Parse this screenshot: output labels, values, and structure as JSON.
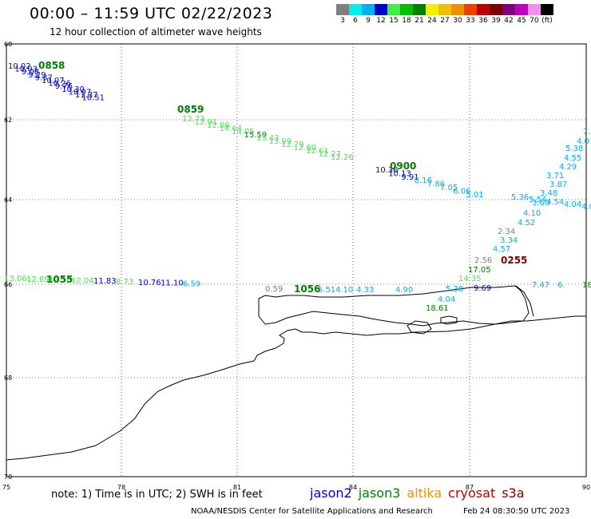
{
  "header": {
    "title": "00:00 – 11:59 UTC 02/22/2023",
    "subtitle": "12 hour collection of altimeter wave heights"
  },
  "legend": {
    "colors": [
      "#7f7f7f",
      "#00f0f0",
      "#00b0f0",
      "#0000d0",
      "#40f040",
      "#00c000",
      "#008000",
      "#f0f000",
      "#f0c000",
      "#f09000",
      "#f04000",
      "#c00000",
      "#800000",
      "#800080",
      "#c000c0",
      "#f090f0",
      "#000000"
    ],
    "labels": [
      "3",
      "6",
      "9",
      "12",
      "15",
      "18",
      "21",
      "24",
      "27",
      "30",
      "33",
      "36",
      "39",
      "42",
      "45",
      "70",
      "(ft)"
    ]
  },
  "axes": {
    "lat_labels": [
      "60",
      "62",
      "64",
      "66",
      "68",
      "70"
    ],
    "lon_labels": [
      "75",
      "78",
      "81",
      "84",
      "87",
      "90"
    ]
  },
  "tracks": [
    {
      "time": "0858",
      "time_color": "#008000",
      "points": [
        {
          "v": "10.02",
          "c": "#0000d0"
        },
        {
          "v": "10.03",
          "c": "#0000d0"
        },
        {
          "v": "9.08",
          "c": "#0000d0"
        },
        {
          "v": "9.29",
          "c": "#0000d0"
        },
        {
          "v": "9.37",
          "c": "#0000d0"
        },
        {
          "v": "10.07",
          "c": "#0000d0"
        },
        {
          "v": "10.26",
          "c": "#0000d0"
        },
        {
          "v": "9.76",
          "c": "#0000d0"
        },
        {
          "v": "10.30",
          "c": "#0000d0"
        },
        {
          "v": "10.97",
          "c": "#0000d0"
        },
        {
          "v": "11.37",
          "c": "#0000d0"
        },
        {
          "v": "10.51",
          "c": "#0000d0"
        }
      ]
    },
    {
      "time": "0859",
      "time_color": "#008000",
      "points": [
        {
          "v": "12.73",
          "c": "#40f040"
        },
        {
          "v": "12.91",
          "c": "#40f040"
        },
        {
          "v": "12.86",
          "c": "#40f040"
        },
        {
          "v": "14.64",
          "c": "#40f040"
        },
        {
          "v": "14.05",
          "c": "#40f040"
        },
        {
          "v": "15.59",
          "c": "#008000"
        },
        {
          "v": "13.43",
          "c": "#40f040"
        },
        {
          "v": "13.99",
          "c": "#40f040"
        },
        {
          "v": "12.79",
          "c": "#40f040"
        },
        {
          "v": "12.80",
          "c": "#40f040"
        },
        {
          "v": "12.61",
          "c": "#40f040"
        },
        {
          "v": "12.27",
          "c": "#40f040"
        },
        {
          "v": "12.26",
          "c": "#40f040"
        }
      ]
    },
    {
      "time": "0900",
      "time_color": "#008000",
      "points": [
        {
          "v": "10.36",
          "c": "#0000d0"
        },
        {
          "v": "10.13",
          "c": "#0000d0"
        },
        {
          "v": "9.91",
          "c": "#0000d0"
        },
        {
          "v": "8.16",
          "c": "#00b0f0"
        },
        {
          "v": "7.86",
          "c": "#00b0f0"
        },
        {
          "v": "7.05",
          "c": "#00b0f0"
        },
        {
          "v": "6.06",
          "c": "#00b0f0"
        },
        {
          "v": "5.01",
          "c": "#00b0f0"
        }
      ]
    },
    {
      "time": "",
      "time_color": "#008000",
      "points": [
        {
          "v": "5.36",
          "c": "#00b0f0"
        },
        {
          "v": "5.54",
          "c": "#00b0f0"
        },
        {
          "v": "4.54",
          "c": "#00b0f0"
        },
        {
          "v": "4.04",
          "c": "#00b0f0"
        },
        {
          "v": "4.02",
          "c": "#00b0f0"
        }
      ]
    },
    {
      "time": "0255",
      "time_color": "#800000",
      "points": [
        {
          "v": "7.",
          "c": "#00b0f0"
        },
        {
          "v": "4.0",
          "c": "#00b0f0"
        },
        {
          "v": "5.38",
          "c": "#00b0f0"
        },
        {
          "v": "4.55",
          "c": "#00b0f0"
        },
        {
          "v": "4.29",
          "c": "#00b0f0"
        },
        {
          "v": "3.71",
          "c": "#00b0f0"
        },
        {
          "v": "3.87",
          "c": "#00b0f0"
        },
        {
          "v": "3.48",
          "c": "#00b0f0"
        },
        {
          "v": "3.60",
          "c": "#00b0f0"
        },
        {
          "v": "4.10",
          "c": "#00b0f0"
        },
        {
          "v": "4.52",
          "c": "#00b0f0"
        },
        {
          "v": "2.34",
          "c": "#7f7f7f"
        },
        {
          "v": "3.34",
          "c": "#00b0f0"
        },
        {
          "v": "4.57",
          "c": "#00b0f0"
        },
        {
          "v": "2.56",
          "c": "#7f7f7f"
        },
        {
          "v": "17.05",
          "c": "#008000"
        },
        {
          "v": "14.35",
          "c": "#40f040"
        },
        {
          "v": "5.38",
          "c": "#00b0f0"
        },
        {
          "v": "4.04",
          "c": "#00b0f0"
        },
        {
          "v": "18.61",
          "c": "#008000"
        },
        {
          "v": "9.69",
          "c": "#0000d0"
        }
      ]
    },
    {
      "time": "1055",
      "time_color": "#008000",
      "points": [
        {
          "v": "13.06",
          "c": "#40f040"
        },
        {
          "v": "12.69",
          "c": "#40f040"
        },
        {
          "v": "12.18",
          "c": "#40f040"
        },
        {
          "v": "12.04",
          "c": "#40f040"
        },
        {
          "v": "11.83",
          "c": "#0000d0"
        },
        {
          "v": "8.73",
          "c": "#40f040"
        },
        {
          "v": "10.76",
          "c": "#0000d0"
        },
        {
          "v": "11.10",
          "c": "#0000d0"
        },
        {
          "v": "6.59",
          "c": "#00b0f0"
        }
      ]
    },
    {
      "time": "1056",
      "time_color": "#008000",
      "points": [
        {
          "v": "0.59",
          "c": "#7f7f7f"
        },
        {
          "v": "5.51",
          "c": "#00b0f0"
        },
        {
          "v": "4.10",
          "c": "#00b0f0"
        },
        {
          "v": "4.33",
          "c": "#00b0f0"
        },
        {
          "v": "4.90",
          "c": "#00b0f0"
        },
        {
          "v": "7.47",
          "c": "#00b0f0"
        },
        {
          "v": "6.",
          "c": "#00b0f0"
        },
        {
          "v": "18",
          "c": "#008000"
        }
      ]
    }
  ],
  "footer": {
    "note": "note:  1) Time is in UTC;  2) SWH is in feet",
    "satellites": [
      {
        "name": "jason2",
        "color": "#0000d0"
      },
      {
        "name": "jason3",
        "color": "#008000"
      },
      {
        "name": "altika",
        "color": "#f09000"
      },
      {
        "name": "cryosat",
        "color": "#c00000"
      },
      {
        "name": "s3a",
        "color": "#800000"
      }
    ],
    "credit": "NOAA/NESDIS Center for Satellite Applications and Research",
    "timestamp": "Feb 24 08:30:50 UTC 2023"
  }
}
